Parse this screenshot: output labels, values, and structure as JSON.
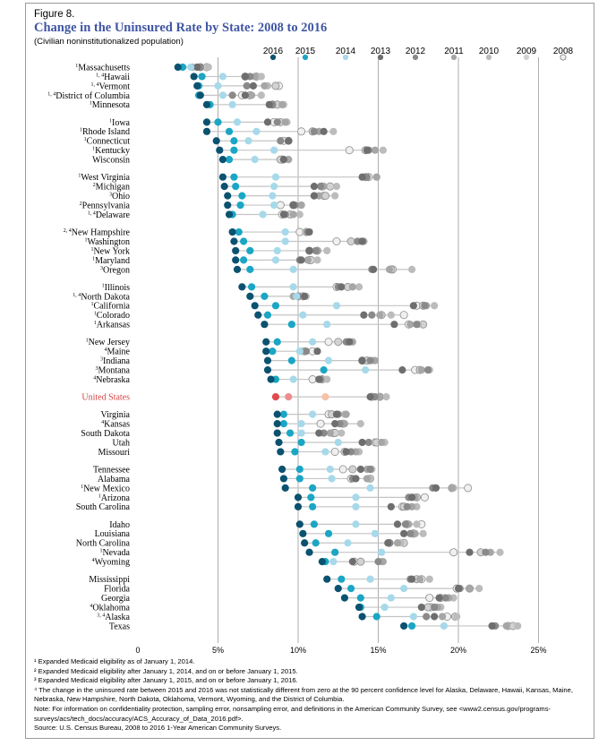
{
  "figure": {
    "label": "Figure 8.",
    "title": "Change in the Uninsured Rate by State: 2008 to 2016",
    "subtitle": "(Civilian noninstitutionalized population)"
  },
  "colors": {
    "2016": "#0b5270",
    "2015": "#1aa6c4",
    "2014": "#a6d9ea",
    "2013": "#6e6e6e",
    "2012": "#8a8a8a",
    "2011": "#a6a6a6",
    "2010": "#bcbcbc",
    "2009": "#d2d2d2",
    "2008": "#f0f0f0",
    "us_2016": "#e14b4b",
    "us_2015": "#ee8d8d",
    "us_2014": "#f7c2a6",
    "us_2013": "#6e6e6e",
    "us_label": "#d64545",
    "gridline": "#9a9a9a",
    "range_line": "#c4c4c4",
    "title": "#3f55a3"
  },
  "chart_data": {
    "type": "dot-range",
    "years": [
      "2016",
      "2015",
      "2014",
      "2013",
      "2012",
      "2011",
      "2010",
      "2009",
      "2008"
    ],
    "x_ticks": [
      "0",
      "5%",
      "10%",
      "15%",
      "20%",
      "25%"
    ],
    "x_tick_values": [
      0,
      5,
      10,
      15,
      20,
      25
    ],
    "xlim": [
      0,
      25
    ],
    "grid": true,
    "legend_position": "top",
    "groups": [
      [
        {
          "sup": "1",
          "name": "Massachusetts",
          "values": [
            2.5,
            2.8,
            3.3,
            3.7,
            3.9,
            3.4,
            4.4,
            4.3,
            3.9
          ]
        },
        {
          "sup": "1, 4",
          "name": "Hawaii",
          "values": [
            3.5,
            4.0,
            5.3,
            6.7,
            7.0,
            7.3,
            7.7,
            7.4,
            6.7
          ]
        },
        {
          "sup": "1, 4",
          "name": "Vermont",
          "values": [
            3.7,
            3.8,
            5.0,
            7.2,
            6.8,
            7.9,
            8.1,
            8.6,
            8.8
          ]
        },
        {
          "sup": "1, 4",
          "name": "District of Columbia",
          "values": [
            3.9,
            3.8,
            5.3,
            6.7,
            5.9,
            7.1,
            7.7,
            7.0,
            6.5
          ]
        },
        {
          "sup": "1",
          "name": "Minnesota",
          "values": [
            4.3,
            4.5,
            5.9,
            8.2,
            8.4,
            9.0,
            9.1,
            8.7,
            8.4
          ]
        }
      ],
      [
        {
          "sup": "1",
          "name": "Iowa",
          "values": [
            4.3,
            5.0,
            6.2,
            8.1,
            8.7,
            9.2,
            9.3,
            8.9,
            8.5
          ]
        },
        {
          "sup": "1",
          "name": "Rhode Island",
          "values": [
            4.3,
            5.7,
            7.4,
            11.6,
            11.0,
            11.3,
            12.2,
            10.9,
            10.2
          ]
        },
        {
          "sup": "1",
          "name": "Connecticut",
          "values": [
            4.9,
            6.0,
            6.9,
            9.4,
            8.9,
            8.9,
            9.4,
            9.4,
            9.1
          ]
        },
        {
          "sup": "1",
          "name": "Kentucky",
          "values": [
            5.1,
            6.0,
            8.5,
            14.3,
            14.4,
            14.8,
            15.3,
            14.2,
            13.2
          ]
        },
        {
          "sup": "",
          "name": "Wisconsin",
          "values": [
            5.3,
            5.7,
            7.3,
            9.1,
            9.1,
            9.4,
            9.4,
            8.9,
            9.0
          ]
        }
      ],
      [
        {
          "sup": "1",
          "name": "West Virginia",
          "values": [
            5.3,
            6.0,
            8.6,
            14.0,
            14.3,
            14.9,
            14.9,
            14.2,
            14.4
          ]
        },
        {
          "sup": "2",
          "name": "Michigan",
          "values": [
            5.4,
            6.1,
            8.5,
            11.0,
            11.4,
            11.6,
            12.4,
            12.0,
            11.5
          ]
        },
        {
          "sup": "3",
          "name": "Ohio",
          "values": [
            5.6,
            6.5,
            8.4,
            11.0,
            11.0,
            11.3,
            12.3,
            11.7,
            11.6
          ]
        },
        {
          "sup": "2",
          "name": "Pennsylvania",
          "values": [
            5.6,
            6.4,
            8.5,
            9.7,
            9.8,
            10.2,
            10.2,
            9.7,
            8.9
          ]
        },
        {
          "sup": "1, 4",
          "name": "Delaware",
          "values": [
            5.7,
            5.9,
            7.8,
            9.1,
            9.2,
            9.7,
            10.1,
            9.5,
            9.0
          ]
        }
      ],
      [
        {
          "sup": "2, 4",
          "name": "New Hampshire",
          "values": [
            5.9,
            6.3,
            9.2,
            10.7,
            10.6,
            10.6,
            10.5,
            10.5,
            10.1
          ]
        },
        {
          "sup": "1",
          "name": "Washington",
          "values": [
            6.0,
            6.6,
            9.2,
            14.0,
            13.7,
            14.1,
            13.9,
            13.3,
            12.4
          ]
        },
        {
          "sup": "1",
          "name": "New York",
          "values": [
            6.1,
            7.0,
            8.7,
            10.7,
            11.1,
            11.2,
            11.8,
            11.2,
            10.7
          ]
        },
        {
          "sup": "1",
          "name": "Maryland",
          "values": [
            6.1,
            6.6,
            8.6,
            10.2,
            10.1,
            10.6,
            11.2,
            10.8,
            10.7
          ]
        },
        {
          "sup": "3",
          "name": "Oregon",
          "values": [
            6.2,
            7.0,
            9.7,
            14.7,
            14.6,
            15.7,
            17.1,
            15.8,
            15.9
          ]
        }
      ],
      [
        {
          "sup": "1",
          "name": "Illinois",
          "values": [
            6.5,
            7.1,
            9.7,
            12.7,
            12.5,
            13.4,
            13.8,
            13.1,
            12.4
          ]
        },
        {
          "sup": "1, 4",
          "name": "North Dakota",
          "values": [
            7.0,
            7.9,
            9.9,
            10.4,
            10.0,
            9.7,
            10.5,
            10.3,
            10.0
          ]
        },
        {
          "sup": "1",
          "name": "California",
          "values": [
            7.3,
            8.6,
            12.4,
            17.2,
            17.9,
            18.0,
            18.5,
            17.8,
            17.4
          ]
        },
        {
          "sup": "1",
          "name": "Colorado",
          "values": [
            7.5,
            8.1,
            10.3,
            14.1,
            14.6,
            15.1,
            15.8,
            15.2,
            16.6
          ]
        },
        {
          "sup": "1",
          "name": "Arkansas",
          "values": [
            7.9,
            9.6,
            11.8,
            16.0,
            17.4,
            17.0,
            17.5,
            17.8,
            16.9
          ]
        }
      ],
      [
        {
          "sup": "1",
          "name": "New Jersey",
          "values": [
            8.0,
            8.7,
            10.9,
            13.2,
            13.0,
            13.4,
            13.1,
            12.5,
            11.9
          ]
        },
        {
          "sup": "4",
          "name": "Maine",
          "values": [
            8.0,
            8.4,
            10.1,
            11.2,
            10.5,
            10.2,
            10.4,
            10.4,
            10.9
          ]
        },
        {
          "sup": "3",
          "name": "Indiana",
          "values": [
            8.1,
            9.6,
            11.9,
            14.0,
            14.5,
            14.8,
            14.7,
            14.3,
            14.0
          ]
        },
        {
          "sup": "3",
          "name": "Montana",
          "values": [
            8.1,
            11.6,
            14.2,
            16.5,
            18.1,
            17.7,
            18.2,
            17.6,
            17.3
          ]
        },
        {
          "sup": "4",
          "name": "Nebraska",
          "values": [
            8.3,
            8.6,
            9.7,
            11.3,
            11.4,
            11.3,
            11.8,
            11.5,
            10.9
          ]
        }
      ],
      [
        {
          "sup": "",
          "name": "United States",
          "us": true,
          "values": [
            8.6,
            9.4,
            11.7,
            14.5,
            14.8,
            15.1,
            15.5,
            15.1,
            14.6
          ]
        }
      ],
      [
        {
          "sup": "",
          "name": "Virginia",
          "values": [
            8.7,
            9.1,
            10.9,
            12.4,
            12.5,
            13.0,
            12.9,
            12.1,
            11.9
          ]
        },
        {
          "sup": "4",
          "name": "Kansas",
          "values": [
            8.7,
            9.1,
            10.2,
            12.3,
            12.6,
            12.9,
            13.9,
            12.8,
            11.4
          ]
        },
        {
          "sup": "",
          "name": "South Dakota",
          "values": [
            8.7,
            9.5,
            10.2,
            11.3,
            11.6,
            12.0,
            12.7,
            12.3,
            12.2
          ]
        },
        {
          "sup": "",
          "name": "Utah",
          "values": [
            8.8,
            10.2,
            12.5,
            14.0,
            14.4,
            15.2,
            15.4,
            14.9,
            14.8
          ]
        },
        {
          "sup": "",
          "name": "Missouri",
          "values": [
            8.9,
            9.8,
            11.7,
            13.0,
            13.3,
            13.6,
            13.8,
            12.9,
            12.3
          ]
        }
      ],
      [
        {
          "sup": "",
          "name": "Tennessee",
          "values": [
            9.0,
            10.1,
            12.0,
            13.9,
            14.5,
            14.3,
            14.6,
            13.4,
            12.8
          ]
        },
        {
          "sup": "",
          "name": "Alabama",
          "values": [
            9.1,
            10.1,
            12.1,
            13.6,
            13.4,
            14.3,
            14.5,
            14.5,
            13.3
          ]
        },
        {
          "sup": "1",
          "name": "New Mexico",
          "values": [
            9.2,
            10.9,
            14.5,
            18.6,
            18.4,
            19.6,
            19.7,
            19.6,
            20.6
          ]
        },
        {
          "sup": "1",
          "name": "Arizona",
          "values": [
            10.0,
            10.8,
            13.6,
            17.1,
            16.9,
            17.3,
            17.3,
            17.4,
            17.9
          ]
        },
        {
          "sup": "",
          "name": "South Carolina",
          "values": [
            10.0,
            10.9,
            13.6,
            15.8,
            16.8,
            17.1,
            17.4,
            16.6,
            16.5
          ]
        }
      ],
      [
        {
          "sup": "",
          "name": "Idaho",
          "values": [
            10.1,
            11.0,
            13.6,
            16.2,
            16.7,
            16.9,
            17.4,
            16.8,
            17.7
          ]
        },
        {
          "sup": "",
          "name": "Louisiana",
          "values": [
            10.3,
            11.9,
            14.8,
            16.6,
            17.0,
            17.3,
            17.8,
            17.2,
            17.2
          ]
        },
        {
          "sup": "",
          "name": "North Carolina",
          "values": [
            10.4,
            11.1,
            13.1,
            15.6,
            15.7,
            16.2,
            16.4,
            16.6,
            15.7
          ]
        },
        {
          "sup": "1",
          "name": "Nevada",
          "values": [
            10.7,
            12.3,
            15.2,
            20.7,
            21.7,
            22.0,
            22.6,
            21.4,
            19.7
          ]
        },
        {
          "sup": "4",
          "name": "Wyoming",
          "values": [
            11.5,
            11.7,
            12.2,
            13.4,
            15.0,
            15.3,
            15.2,
            13.9,
            13.5
          ]
        }
      ],
      [
        {
          "sup": "",
          "name": "Mississippi",
          "values": [
            11.8,
            12.7,
            14.5,
            17.1,
            17.0,
            17.6,
            18.2,
            17.4,
            17.7
          ]
        },
        {
          "sup": "",
          "name": "Florida",
          "values": [
            12.5,
            13.3,
            16.6,
            20.0,
            20.1,
            20.7,
            21.3,
            20.7,
            19.9
          ]
        },
        {
          "sup": "",
          "name": "Georgia",
          "values": [
            12.9,
            13.9,
            15.8,
            18.8,
            19.2,
            19.4,
            19.7,
            18.9,
            18.2
          ]
        },
        {
          "sup": "4",
          "name": "Oklahoma",
          "values": [
            13.8,
            13.9,
            15.4,
            17.7,
            18.5,
            18.7,
            18.9,
            18.1,
            18.3
          ]
        },
        {
          "sup": "3, 4",
          "name": "Alaska",
          "values": [
            14.0,
            14.9,
            17.2,
            18.5,
            18.0,
            19.0,
            19.9,
            19.8,
            19.3
          ]
        },
        {
          "sup": "",
          "name": "Texas",
          "values": [
            16.6,
            17.1,
            19.1,
            22.1,
            22.3,
            23.0,
            23.7,
            23.4,
            23.1
          ]
        }
      ]
    ]
  },
  "footnotes": {
    "f1": "¹ Expanded Medicaid eligibility as of January 1, 2014.",
    "f2": "² Expanded Medicaid eligibility after January 1, 2014, and on or before January 1, 2015.",
    "f3": "³ Expanded Medicaid eligibility after January 1, 2015, and on or before January 1, 2016.",
    "f4": "⁴ The change in the uninsured rate between 2015 and 2016 was not statistically different from zero at the 90 percent confidence level for Alaska, Delaware, Hawaii, Kansas, Maine, Nebraska, New Hampshire, North Dakota, Oklahoma, Vermont, Wyoming, and the District of Columbia.",
    "note": "Note: For information on confidentiality protection, sampling error, nonsampling error, and definitions in the American Community Survey, see <www2.census.gov/programs-surveys/acs/tech_docs/accuracy/ACS_Accuracy_of_Data_2016.pdf>.",
    "source": "Source: U.S. Census Bureau, 2008 to 2016 1-Year American Community Surveys."
  }
}
